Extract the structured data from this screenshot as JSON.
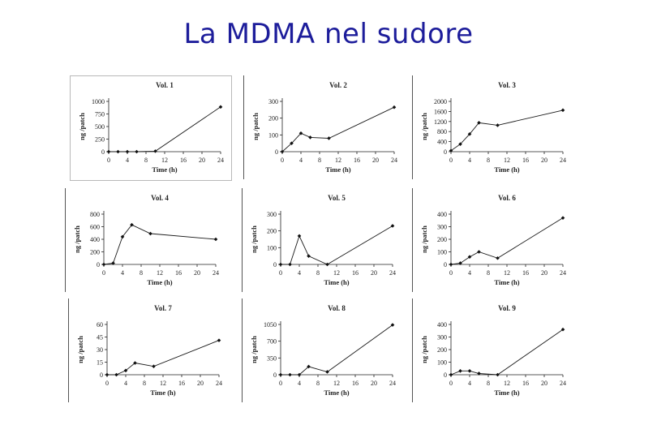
{
  "title": "La MDMA nel sudore",
  "chart_data": [
    {
      "type": "line",
      "title": "Vol. 1",
      "xlabel": "Time (h)",
      "ylabel": "ng /patch",
      "xlim": [
        0,
        24
      ],
      "ylim": [
        0,
        1000
      ],
      "xticks": [
        "0",
        "4",
        "8",
        "12",
        "16",
        "20",
        "24"
      ],
      "yticks": [
        "0",
        "250",
        "500",
        "750",
        "1000"
      ],
      "series": [
        {
          "x": [
            0,
            2,
            4,
            6,
            10,
            24
          ],
          "y": [
            0,
            0,
            0,
            0,
            10,
            890
          ]
        }
      ]
    },
    {
      "type": "line",
      "title": "Vol. 2",
      "xlabel": "Time (h)",
      "ylabel": "ng /patch",
      "xlim": [
        0,
        24
      ],
      "ylim": [
        0,
        300
      ],
      "xticks": [
        "0",
        "4",
        "8",
        "12",
        "16",
        "20",
        "24"
      ],
      "yticks": [
        "0",
        "100",
        "200",
        "300"
      ],
      "series": [
        {
          "x": [
            0,
            2,
            4,
            6,
            10,
            24
          ],
          "y": [
            0,
            50,
            110,
            85,
            80,
            265
          ]
        }
      ]
    },
    {
      "type": "line",
      "title": "Vol. 3",
      "xlabel": "Time (h)",
      "ylabel": "ng /patch",
      "xlim": [
        0,
        24
      ],
      "ylim": [
        0,
        2000
      ],
      "xticks": [
        "0",
        "4",
        "8",
        "12",
        "16",
        "20",
        "24"
      ],
      "yticks": [
        "0",
        "400",
        "800",
        "1200",
        "1600",
        "2000"
      ],
      "series": [
        {
          "x": [
            0,
            2,
            4,
            6,
            10,
            24
          ],
          "y": [
            40,
            300,
            700,
            1150,
            1050,
            1650
          ]
        }
      ]
    },
    {
      "type": "line",
      "title": "Vol. 4",
      "xlabel": "Time (h)",
      "ylabel": "ng /patch",
      "xlim": [
        0,
        24
      ],
      "ylim": [
        0,
        800
      ],
      "xticks": [
        "0",
        "4",
        "8",
        "12",
        "16",
        "20",
        "24"
      ],
      "yticks": [
        "0",
        "200",
        "400",
        "600",
        "800"
      ],
      "series": [
        {
          "x": [
            0,
            2,
            4,
            6,
            10,
            24
          ],
          "y": [
            0,
            20,
            440,
            630,
            490,
            400
          ]
        }
      ]
    },
    {
      "type": "line",
      "title": "Vol. 5",
      "xlabel": "Time (h)",
      "ylabel": "ng /patch",
      "xlim": [
        0,
        24
      ],
      "ylim": [
        0,
        300
      ],
      "xticks": [
        "0",
        "4",
        "8",
        "12",
        "16",
        "20",
        "24"
      ],
      "yticks": [
        "0",
        "100",
        "200",
        "300"
      ],
      "series": [
        {
          "x": [
            0,
            2,
            4,
            6,
            10,
            24
          ],
          "y": [
            0,
            0,
            170,
            50,
            0,
            230
          ]
        }
      ]
    },
    {
      "type": "line",
      "title": "Vol. 6",
      "xlabel": "Time (h)",
      "ylabel": "ng /patch",
      "xlim": [
        0,
        24
      ],
      "ylim": [
        0,
        400
      ],
      "xticks": [
        "0",
        "4",
        "8",
        "12",
        "16",
        "20",
        "24"
      ],
      "yticks": [
        "0",
        "100",
        "200",
        "300",
        "400"
      ],
      "series": [
        {
          "x": [
            0,
            2,
            4,
            6,
            10,
            24
          ],
          "y": [
            0,
            10,
            60,
            100,
            50,
            370
          ]
        }
      ]
    },
    {
      "type": "line",
      "title": "Vol. 7",
      "xlabel": "Time (h)",
      "ylabel": "ng /patch",
      "xlim": [
        0,
        24
      ],
      "ylim": [
        0,
        60
      ],
      "xticks": [
        "0",
        "4",
        "8",
        "12",
        "16",
        "20",
        "24"
      ],
      "yticks": [
        "0",
        "15",
        "30",
        "45",
        "60"
      ],
      "series": [
        {
          "x": [
            0,
            2,
            4,
            6,
            10,
            24
          ],
          "y": [
            0,
            0,
            5,
            14,
            10,
            41
          ]
        }
      ]
    },
    {
      "type": "line",
      "title": "Vol. 8",
      "xlabel": "Time (h)",
      "ylabel": "ng /patch",
      "xlim": [
        0,
        24
      ],
      "ylim": [
        0,
        1050
      ],
      "xticks": [
        "0",
        "4",
        "8",
        "12",
        "16",
        "20",
        "24"
      ],
      "yticks": [
        "0",
        "350",
        "700",
        "1050"
      ],
      "series": [
        {
          "x": [
            0,
            2,
            4,
            6,
            10,
            24
          ],
          "y": [
            0,
            0,
            0,
            170,
            60,
            1040
          ]
        }
      ]
    },
    {
      "type": "line",
      "title": "Vol. 9",
      "xlabel": "Time (h)",
      "ylabel": "ng /patch",
      "xlim": [
        0,
        24
      ],
      "ylim": [
        0,
        400
      ],
      "xticks": [
        "0",
        "4",
        "8",
        "12",
        "16",
        "20",
        "24"
      ],
      "yticks": [
        "0",
        "100",
        "200",
        "300",
        "400"
      ],
      "series": [
        {
          "x": [
            0,
            2,
            4,
            6,
            10,
            24
          ],
          "y": [
            0,
            30,
            30,
            10,
            0,
            360
          ]
        }
      ]
    }
  ]
}
